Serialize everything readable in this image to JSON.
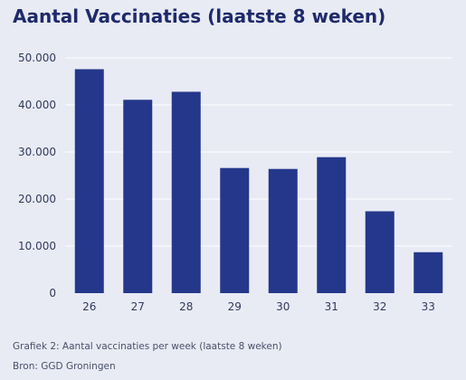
{
  "title": "Aantal Vaccinaties (laatste 8 weken)",
  "caption": "Grafiek 2: Aantal vaccinaties per week (laatste 8 weken)",
  "source": "Bron: GGD Groningen",
  "colors": {
    "bar": "#24378a",
    "grid": "#ffffff",
    "background": "#e8ebf4"
  },
  "chart_data": {
    "type": "bar",
    "title": "Aantal Vaccinaties (laatste 8 weken)",
    "categories": [
      "26",
      "27",
      "28",
      "29",
      "30",
      "31",
      "32",
      "33"
    ],
    "values": [
      47600,
      41100,
      42800,
      26600,
      26400,
      28900,
      17400,
      8700
    ],
    "ylim": [
      0,
      50000
    ],
    "yticks": [
      0,
      10000,
      20000,
      30000,
      40000,
      50000
    ],
    "ytick_labels": [
      "0",
      "10.000",
      "20.000",
      "30.000",
      "40.000",
      "50.000"
    ],
    "grid": true,
    "xlabel": "",
    "ylabel": ""
  }
}
